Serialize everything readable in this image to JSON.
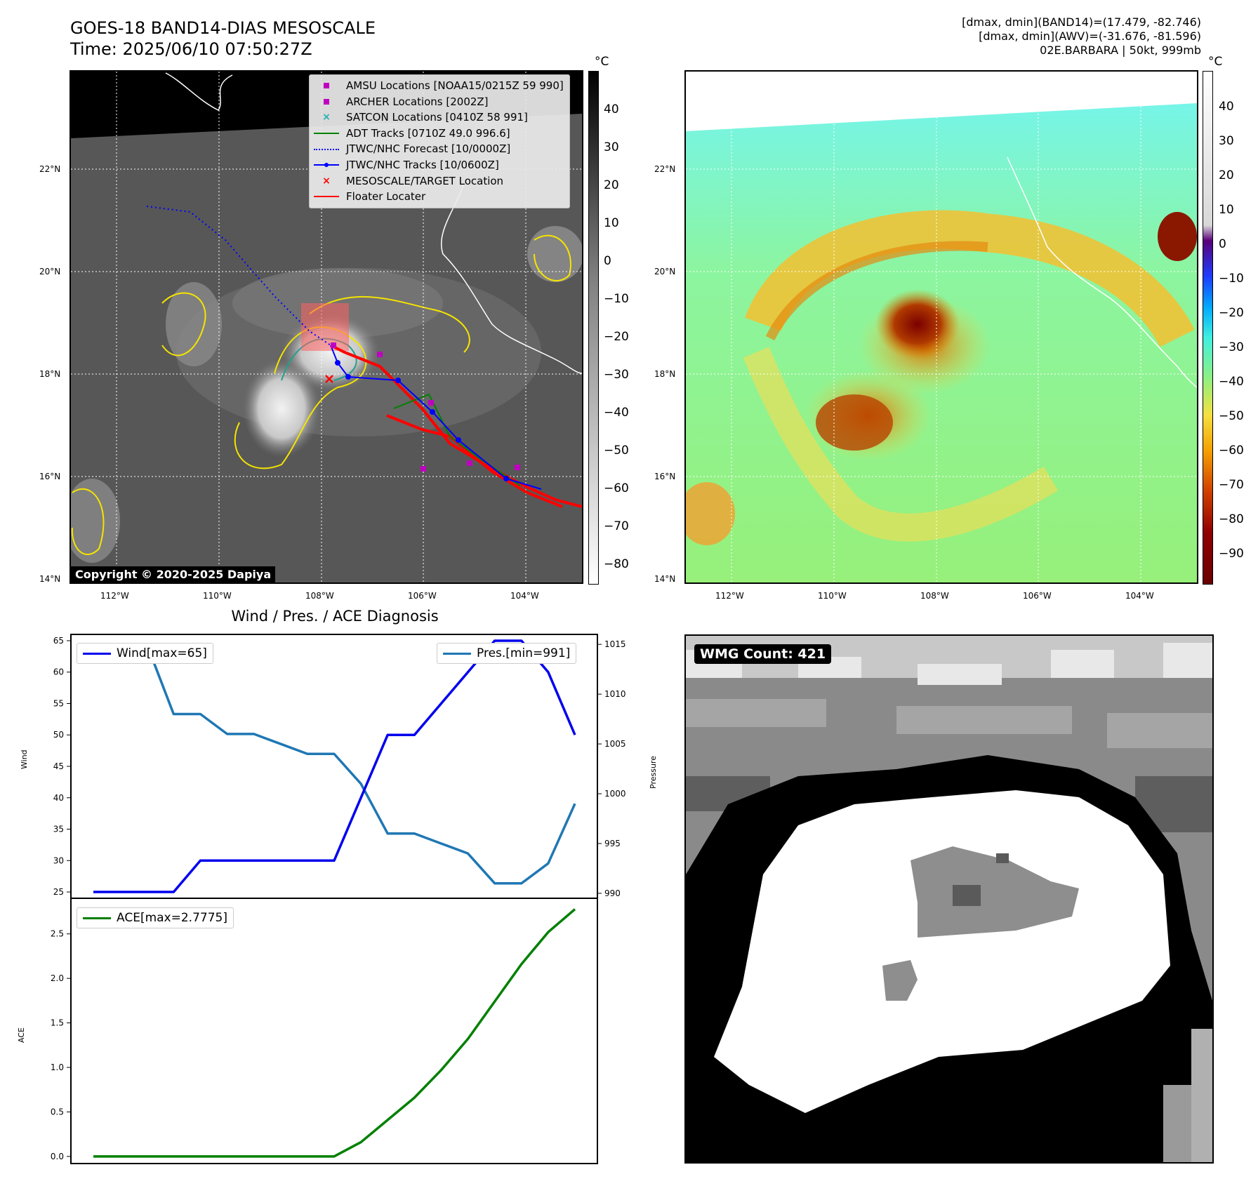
{
  "header": {
    "title_line1": "GOES-18 BAND14-DIAS MESOSCALE",
    "title_line2": "Time: 2025/06/10 07:50:27Z",
    "info_line1": "[dmax, dmin](BAND14)=(17.479, -82.746)",
    "info_line2": "[dmax, dmin](AWV)=(-31.676, -81.596)",
    "info_line3": "02E.BARBARA | 50kt, 999mb"
  },
  "map": {
    "lat_labels": [
      "22°N",
      "20°N",
      "18°N",
      "16°N",
      "14°N"
    ],
    "lon_labels": [
      "112°W",
      "110°W",
      "108°W",
      "106°W",
      "104°W"
    ],
    "copyright": "Copyright © 2020-2025 Dapiya",
    "legend": [
      {
        "label": "AMSU Locations [NOAA15/0215Z 59 990]",
        "color": "#c000c0",
        "marker": "square"
      },
      {
        "label": "ARCHER Locations [2002Z]",
        "color": "#c000c0",
        "marker": "square"
      },
      {
        "label": "SATCON Locations [0410Z 58 991]",
        "color": "#20b0b0",
        "marker": "x"
      },
      {
        "label": "ADT Tracks [0710Z 49.0 996.6]",
        "color": "#008000",
        "marker": "line"
      },
      {
        "label": "JTWC/NHC Forecast [10/0000Z]",
        "color": "#0000ff",
        "marker": "dotted"
      },
      {
        "label": "JTWC/NHC Tracks [10/0600Z]",
        "color": "#0000ff",
        "marker": "line-dot"
      },
      {
        "label": "MESOSCALE/TARGET Location",
        "color": "#ff0000",
        "marker": "x"
      },
      {
        "label": "Floater Locater",
        "color": "#ff0000",
        "marker": "line"
      }
    ],
    "colorbar_unit": "°C",
    "colorbar_gray_ticks": [
      "40",
      "30",
      "20",
      "10",
      "0",
      "−10",
      "−20",
      "−30",
      "−40",
      "−50",
      "−60",
      "−70",
      "−80"
    ],
    "colorbar_awv_ticks": [
      "40",
      "30",
      "20",
      "10",
      "0",
      "−10",
      "−20",
      "−30",
      "−40",
      "−50",
      "−60",
      "−70",
      "−80",
      "−90"
    ]
  },
  "wmg": {
    "label": "WMG Count: 421"
  },
  "colors": {
    "wind": "#0000ee",
    "pressure": "#1f77b4",
    "ace": "#008000"
  },
  "chart_data": [
    {
      "type": "line",
      "title": "Wind / Pres. / ACE Diagnosis",
      "ylabel": "Wind",
      "ylabel_right": "Pressure",
      "ylim": [
        24,
        66
      ],
      "ylim_right": [
        989.5,
        1016
      ],
      "yticks": [
        25,
        30,
        35,
        40,
        45,
        50,
        55,
        60,
        65
      ],
      "yticks_right": [
        990,
        995,
        1000,
        1005,
        1010,
        1015
      ],
      "x": [
        0,
        1,
        2,
        3,
        4,
        5,
        6,
        7,
        8,
        9,
        10,
        11,
        12,
        13,
        14,
        15,
        16,
        17,
        18
      ],
      "series": [
        {
          "name": "Wind[max=65]",
          "axis": "left",
          "values": [
            25,
            25,
            25,
            25,
            30,
            30,
            30,
            30,
            30,
            30,
            40,
            50,
            50,
            55,
            60,
            65,
            65,
            60,
            50
          ]
        },
        {
          "name": "Pres.[min=991]",
          "axis": "right",
          "values": [
            1015,
            1015,
            1015,
            1008,
            1008,
            1006,
            1006,
            1005,
            1004,
            1004,
            1001,
            996,
            996,
            995,
            994,
            991,
            991,
            993,
            999
          ]
        }
      ]
    },
    {
      "type": "line",
      "ylabel": "ACE",
      "ylim": [
        -0.08,
        2.9
      ],
      "yticks": [
        0.0,
        0.5,
        1.0,
        1.5,
        2.0,
        2.5
      ],
      "x": [
        0,
        1,
        2,
        3,
        4,
        5,
        6,
        7,
        8,
        9,
        10,
        11,
        12,
        13,
        14,
        15,
        16,
        17,
        18
      ],
      "series": [
        {
          "name": "ACE[max=2.7775]",
          "values": [
            0,
            0,
            0,
            0,
            0,
            0,
            0,
            0,
            0,
            0,
            0.16,
            0.41,
            0.66,
            0.97,
            1.32,
            1.74,
            2.16,
            2.52,
            2.7775
          ]
        }
      ]
    }
  ]
}
